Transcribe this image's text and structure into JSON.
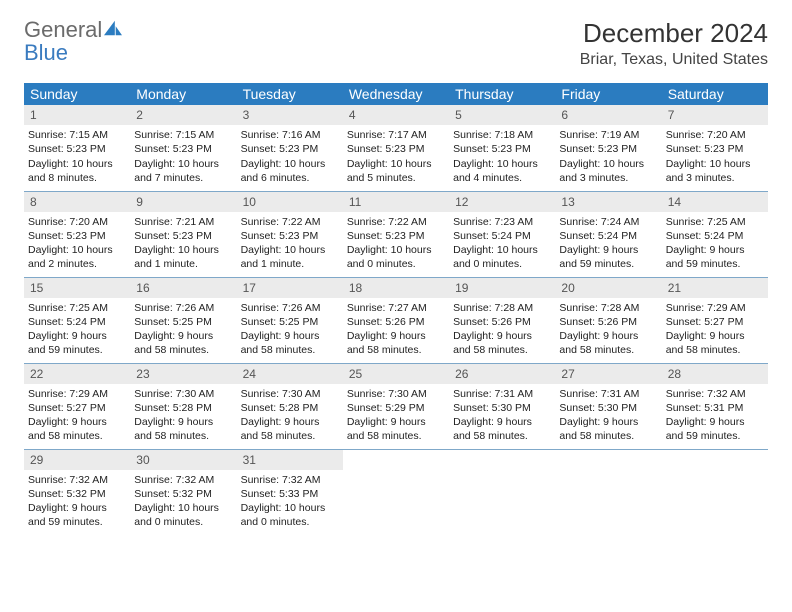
{
  "logo": {
    "word1": "General",
    "word2": "Blue"
  },
  "title": "December 2024",
  "location": "Briar, Texas, United States",
  "day_headers": [
    "Sunday",
    "Monday",
    "Tuesday",
    "Wednesday",
    "Thursday",
    "Friday",
    "Saturday"
  ],
  "colors": {
    "header_bg": "#2b7cc0",
    "header_text": "#ffffff",
    "daynum_bg": "#ebebeb",
    "border": "#7fa8c9",
    "logo_gray": "#6b6b6b",
    "logo_blue": "#3a7bbf"
  },
  "weeks": [
    [
      {
        "num": "1",
        "sunrise": "Sunrise: 7:15 AM",
        "sunset": "Sunset: 5:23 PM",
        "daylight": "Daylight: 10 hours and 8 minutes."
      },
      {
        "num": "2",
        "sunrise": "Sunrise: 7:15 AM",
        "sunset": "Sunset: 5:23 PM",
        "daylight": "Daylight: 10 hours and 7 minutes."
      },
      {
        "num": "3",
        "sunrise": "Sunrise: 7:16 AM",
        "sunset": "Sunset: 5:23 PM",
        "daylight": "Daylight: 10 hours and 6 minutes."
      },
      {
        "num": "4",
        "sunrise": "Sunrise: 7:17 AM",
        "sunset": "Sunset: 5:23 PM",
        "daylight": "Daylight: 10 hours and 5 minutes."
      },
      {
        "num": "5",
        "sunrise": "Sunrise: 7:18 AM",
        "sunset": "Sunset: 5:23 PM",
        "daylight": "Daylight: 10 hours and 4 minutes."
      },
      {
        "num": "6",
        "sunrise": "Sunrise: 7:19 AM",
        "sunset": "Sunset: 5:23 PM",
        "daylight": "Daylight: 10 hours and 3 minutes."
      },
      {
        "num": "7",
        "sunrise": "Sunrise: 7:20 AM",
        "sunset": "Sunset: 5:23 PM",
        "daylight": "Daylight: 10 hours and 3 minutes."
      }
    ],
    [
      {
        "num": "8",
        "sunrise": "Sunrise: 7:20 AM",
        "sunset": "Sunset: 5:23 PM",
        "daylight": "Daylight: 10 hours and 2 minutes."
      },
      {
        "num": "9",
        "sunrise": "Sunrise: 7:21 AM",
        "sunset": "Sunset: 5:23 PM",
        "daylight": "Daylight: 10 hours and 1 minute."
      },
      {
        "num": "10",
        "sunrise": "Sunrise: 7:22 AM",
        "sunset": "Sunset: 5:23 PM",
        "daylight": "Daylight: 10 hours and 1 minute."
      },
      {
        "num": "11",
        "sunrise": "Sunrise: 7:22 AM",
        "sunset": "Sunset: 5:23 PM",
        "daylight": "Daylight: 10 hours and 0 minutes."
      },
      {
        "num": "12",
        "sunrise": "Sunrise: 7:23 AM",
        "sunset": "Sunset: 5:24 PM",
        "daylight": "Daylight: 10 hours and 0 minutes."
      },
      {
        "num": "13",
        "sunrise": "Sunrise: 7:24 AM",
        "sunset": "Sunset: 5:24 PM",
        "daylight": "Daylight: 9 hours and 59 minutes."
      },
      {
        "num": "14",
        "sunrise": "Sunrise: 7:25 AM",
        "sunset": "Sunset: 5:24 PM",
        "daylight": "Daylight: 9 hours and 59 minutes."
      }
    ],
    [
      {
        "num": "15",
        "sunrise": "Sunrise: 7:25 AM",
        "sunset": "Sunset: 5:24 PM",
        "daylight": "Daylight: 9 hours and 59 minutes."
      },
      {
        "num": "16",
        "sunrise": "Sunrise: 7:26 AM",
        "sunset": "Sunset: 5:25 PM",
        "daylight": "Daylight: 9 hours and 58 minutes."
      },
      {
        "num": "17",
        "sunrise": "Sunrise: 7:26 AM",
        "sunset": "Sunset: 5:25 PM",
        "daylight": "Daylight: 9 hours and 58 minutes."
      },
      {
        "num": "18",
        "sunrise": "Sunrise: 7:27 AM",
        "sunset": "Sunset: 5:26 PM",
        "daylight": "Daylight: 9 hours and 58 minutes."
      },
      {
        "num": "19",
        "sunrise": "Sunrise: 7:28 AM",
        "sunset": "Sunset: 5:26 PM",
        "daylight": "Daylight: 9 hours and 58 minutes."
      },
      {
        "num": "20",
        "sunrise": "Sunrise: 7:28 AM",
        "sunset": "Sunset: 5:26 PM",
        "daylight": "Daylight: 9 hours and 58 minutes."
      },
      {
        "num": "21",
        "sunrise": "Sunrise: 7:29 AM",
        "sunset": "Sunset: 5:27 PM",
        "daylight": "Daylight: 9 hours and 58 minutes."
      }
    ],
    [
      {
        "num": "22",
        "sunrise": "Sunrise: 7:29 AM",
        "sunset": "Sunset: 5:27 PM",
        "daylight": "Daylight: 9 hours and 58 minutes."
      },
      {
        "num": "23",
        "sunrise": "Sunrise: 7:30 AM",
        "sunset": "Sunset: 5:28 PM",
        "daylight": "Daylight: 9 hours and 58 minutes."
      },
      {
        "num": "24",
        "sunrise": "Sunrise: 7:30 AM",
        "sunset": "Sunset: 5:28 PM",
        "daylight": "Daylight: 9 hours and 58 minutes."
      },
      {
        "num": "25",
        "sunrise": "Sunrise: 7:30 AM",
        "sunset": "Sunset: 5:29 PM",
        "daylight": "Daylight: 9 hours and 58 minutes."
      },
      {
        "num": "26",
        "sunrise": "Sunrise: 7:31 AM",
        "sunset": "Sunset: 5:30 PM",
        "daylight": "Daylight: 9 hours and 58 minutes."
      },
      {
        "num": "27",
        "sunrise": "Sunrise: 7:31 AM",
        "sunset": "Sunset: 5:30 PM",
        "daylight": "Daylight: 9 hours and 58 minutes."
      },
      {
        "num": "28",
        "sunrise": "Sunrise: 7:32 AM",
        "sunset": "Sunset: 5:31 PM",
        "daylight": "Daylight: 9 hours and 59 minutes."
      }
    ],
    [
      {
        "num": "29",
        "sunrise": "Sunrise: 7:32 AM",
        "sunset": "Sunset: 5:32 PM",
        "daylight": "Daylight: 9 hours and 59 minutes."
      },
      {
        "num": "30",
        "sunrise": "Sunrise: 7:32 AM",
        "sunset": "Sunset: 5:32 PM",
        "daylight": "Daylight: 10 hours and 0 minutes."
      },
      {
        "num": "31",
        "sunrise": "Sunrise: 7:32 AM",
        "sunset": "Sunset: 5:33 PM",
        "daylight": "Daylight: 10 hours and 0 minutes."
      },
      null,
      null,
      null,
      null
    ]
  ]
}
